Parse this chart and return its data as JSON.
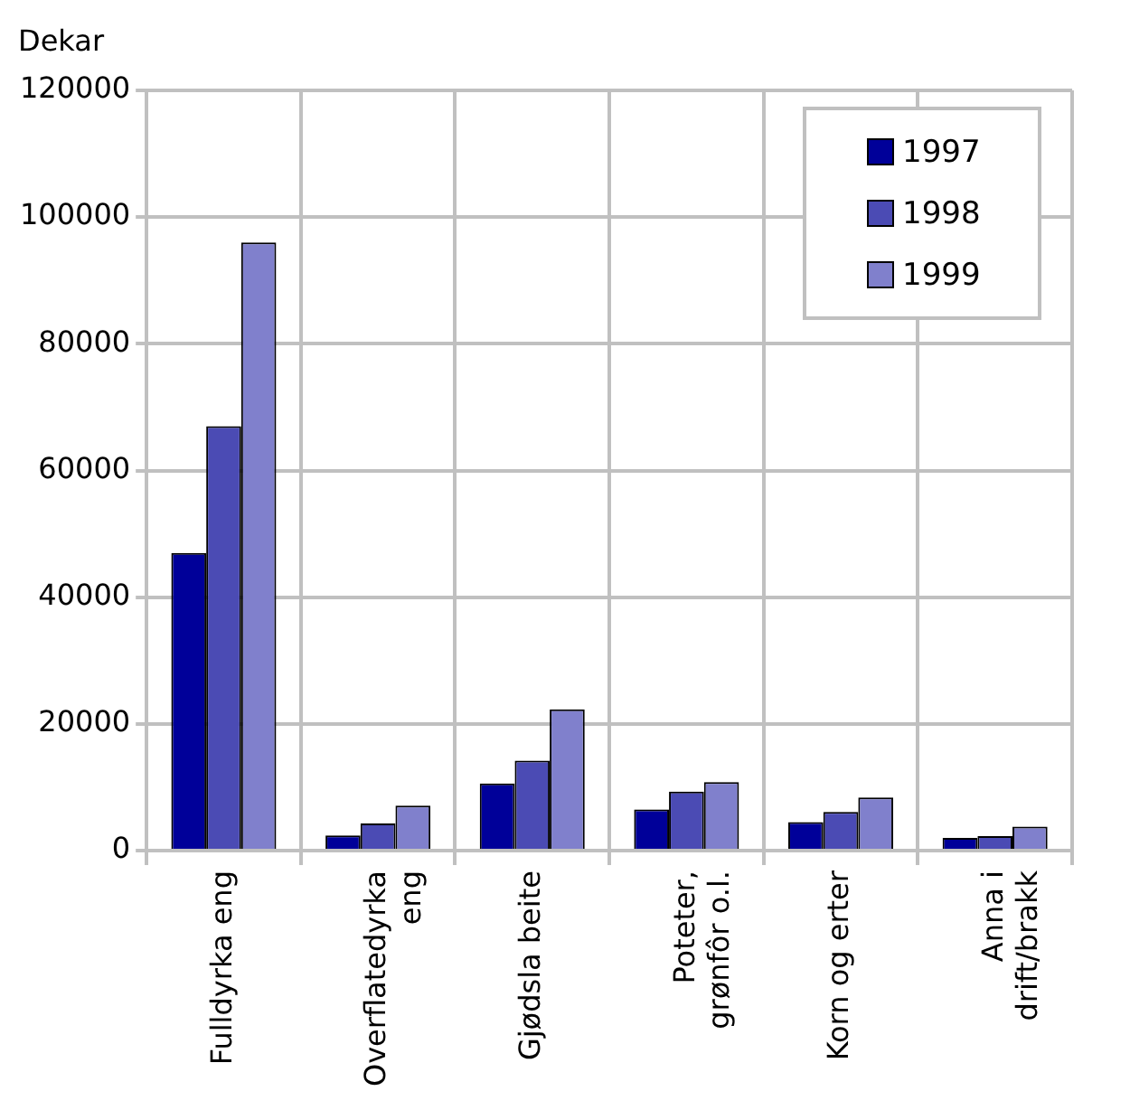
{
  "chart_data": {
    "type": "bar",
    "ylabel": "Dekar",
    "categories": [
      "Fulldyrka eng",
      "Overflatedyrka eng",
      "Gjødsla beite",
      "Poteter, grønfôr o.l.",
      "Korn og erter",
      "Anna i drift/brakk"
    ],
    "series": [
      {
        "name": "1997",
        "color": "#000099",
        "values": [
          47000,
          2400,
          10600,
          6500,
          4500,
          2000
        ]
      },
      {
        "name": "1998",
        "color": "#4b4bb4",
        "values": [
          67000,
          4300,
          14200,
          9300,
          6100,
          2300
        ]
      },
      {
        "name": "1999",
        "color": "#8080cc",
        "values": [
          96000,
          7100,
          22300,
          10800,
          8400,
          3800
        ]
      }
    ],
    "ylim": [
      0,
      120000
    ],
    "yticks": [
      0,
      20000,
      40000,
      60000,
      80000,
      100000,
      120000
    ],
    "grid": true,
    "legend": "top right"
  }
}
